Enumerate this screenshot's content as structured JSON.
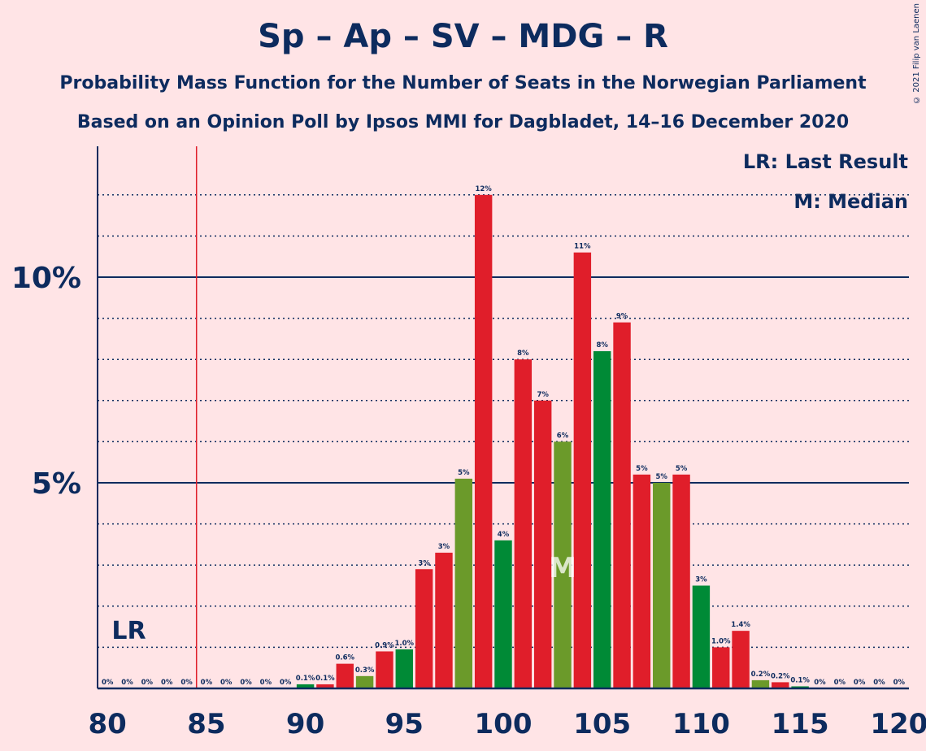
{
  "title": "Sp – Ap – SV – MDG – R",
  "subtitle1": "Probability Mass Function for the Number of Seats in the Norwegian Parliament",
  "subtitle2": "Based on an Opinion Poll by Ipsos MMI for Dagbladet, 14–16 December 2020",
  "copyright": "© 2021 Filip van Laenen",
  "legend": {
    "last_result": "LR: Last Result",
    "median": "M: Median"
  },
  "colors": {
    "background": "#FFE4E6",
    "text": "#0D2B5E",
    "red": "#E01E2A",
    "green": "#008A36",
    "olive": "#6B9A2A",
    "last_result_line": "#E01E2A"
  },
  "chart_data": {
    "type": "bar",
    "xlabel": "",
    "ylabel": "",
    "xlim": [
      80,
      120
    ],
    "ylim": [
      0,
      13
    ],
    "x_ticks": [
      80,
      85,
      90,
      95,
      100,
      105,
      110,
      115,
      120
    ],
    "y_major_ticks": [
      {
        "value": 5,
        "label": "5%"
      },
      {
        "value": 10,
        "label": "10%"
      }
    ],
    "y_minor_gridlines": [
      1,
      2,
      3,
      4,
      6,
      7,
      8,
      9,
      11,
      12
    ],
    "last_result": {
      "seat": 84.5,
      "label": "LR"
    },
    "median": {
      "seat": 103,
      "label": "M"
    },
    "bars": [
      {
        "seat": 80,
        "value": 0,
        "label": "0%",
        "color": "red"
      },
      {
        "seat": 81,
        "value": 0,
        "label": "0%",
        "color": "red"
      },
      {
        "seat": 82,
        "value": 0,
        "label": "0%",
        "color": "red"
      },
      {
        "seat": 83,
        "value": 0,
        "label": "0%",
        "color": "red"
      },
      {
        "seat": 84,
        "value": 0,
        "label": "0%",
        "color": "red"
      },
      {
        "seat": 85,
        "value": 0,
        "label": "0%",
        "color": "red"
      },
      {
        "seat": 86,
        "value": 0,
        "label": "0%",
        "color": "red"
      },
      {
        "seat": 87,
        "value": 0,
        "label": "0%",
        "color": "red"
      },
      {
        "seat": 88,
        "value": 0,
        "label": "0%",
        "color": "red"
      },
      {
        "seat": 89,
        "value": 0,
        "label": "0%",
        "color": "red"
      },
      {
        "seat": 90,
        "value": 0.1,
        "label": "0.1%",
        "color": "green"
      },
      {
        "seat": 91,
        "value": 0.1,
        "label": "0.1%",
        "color": "red"
      },
      {
        "seat": 92,
        "value": 0.6,
        "label": "0.6%",
        "color": "red"
      },
      {
        "seat": 93,
        "value": 0.3,
        "label": "0.3%",
        "color": "olive"
      },
      {
        "seat": 94,
        "value": 0.9,
        "label": "0.9%",
        "color": "red"
      },
      {
        "seat": 95,
        "value": 0.95,
        "label": "1.0%",
        "color": "green"
      },
      {
        "seat": 96,
        "value": 2.9,
        "label": "3%",
        "color": "red"
      },
      {
        "seat": 97,
        "value": 3.3,
        "label": "3%",
        "color": "red"
      },
      {
        "seat": 98,
        "value": 5.1,
        "label": "5%",
        "color": "olive"
      },
      {
        "seat": 99,
        "value": 12.0,
        "label": "12%",
        "color": "red"
      },
      {
        "seat": 100,
        "value": 3.6,
        "label": "4%",
        "color": "green"
      },
      {
        "seat": 101,
        "value": 8.0,
        "label": "8%",
        "color": "red"
      },
      {
        "seat": 102,
        "value": 7.0,
        "label": "7%",
        "color": "red"
      },
      {
        "seat": 103,
        "value": 6.0,
        "label": "6%",
        "color": "olive"
      },
      {
        "seat": 104,
        "value": 10.6,
        "label": "11%",
        "color": "red"
      },
      {
        "seat": 105,
        "value": 8.2,
        "label": "8%",
        "color": "green"
      },
      {
        "seat": 106,
        "value": 8.9,
        "label": "9%",
        "color": "red"
      },
      {
        "seat": 107,
        "value": 5.2,
        "label": "5%",
        "color": "red"
      },
      {
        "seat": 108,
        "value": 5.0,
        "label": "5%",
        "color": "olive"
      },
      {
        "seat": 109,
        "value": 5.2,
        "label": "5%",
        "color": "red"
      },
      {
        "seat": 110,
        "value": 2.5,
        "label": "3%",
        "color": "green"
      },
      {
        "seat": 111,
        "value": 1.0,
        "label": "1.0%",
        "color": "red"
      },
      {
        "seat": 112,
        "value": 1.4,
        "label": "1.4%",
        "color": "red"
      },
      {
        "seat": 113,
        "value": 0.2,
        "label": "0.2%",
        "color": "olive"
      },
      {
        "seat": 114,
        "value": 0.15,
        "label": "0.2%",
        "color": "red"
      },
      {
        "seat": 115,
        "value": 0.05,
        "label": "0.1%",
        "color": "green"
      },
      {
        "seat": 116,
        "value": 0,
        "label": "0%",
        "color": "red"
      },
      {
        "seat": 117,
        "value": 0,
        "label": "0%",
        "color": "red"
      },
      {
        "seat": 118,
        "value": 0,
        "label": "0%",
        "color": "red"
      },
      {
        "seat": 119,
        "value": 0,
        "label": "0%",
        "color": "red"
      },
      {
        "seat": 120,
        "value": 0,
        "label": "0%",
        "color": "red"
      }
    ]
  }
}
